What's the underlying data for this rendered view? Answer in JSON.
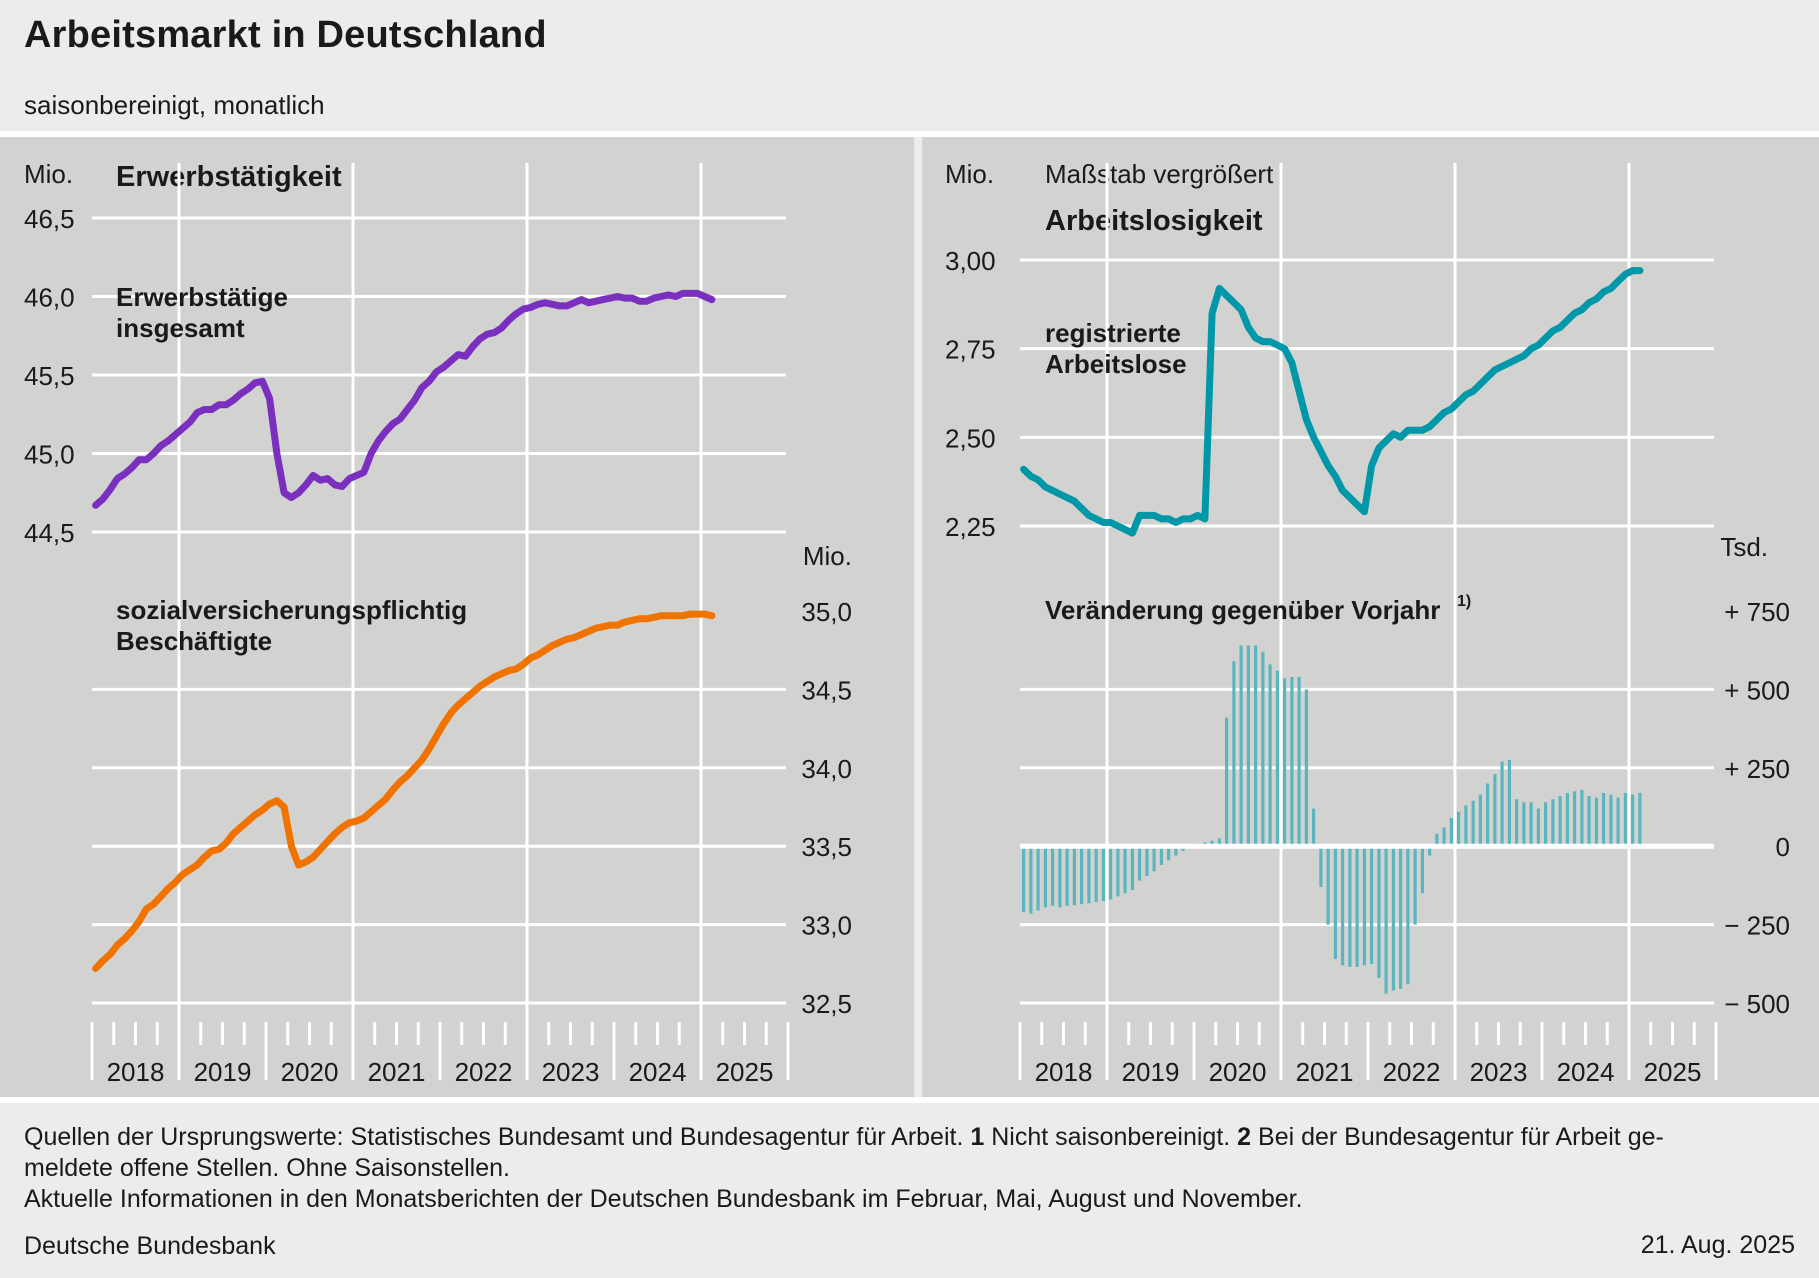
{
  "header": {
    "title": "Arbeitsmarkt in Deutschland",
    "subtitle": "saisonbereinigt, monatlich"
  },
  "colors": {
    "background": "#ececec",
    "panel": "#d2d2d1",
    "grid": "#ffffff",
    "employment": "#7b2fbf",
    "insured": "#f07300",
    "unemployment": "#0098a8",
    "change_bars": "#5ab6be"
  },
  "footer": {
    "line1_pre": "Quellen der Ursprungswerte: Statistisches Bundesamt und Bundesagentur für Arbeit. ",
    "fn1_num": "1",
    "fn1_text": " Nicht saisonbereinigt. ",
    "fn2_num": "2",
    "fn2_text": " Bei der Bundesagentur für Arbeit ge-",
    "line2": "meldete offene Stellen. Ohne Saisonstellen.",
    "line3": "Aktuelle Informationen in den Monatsberichten der Deutschen Bundesbank im Februar, Mai, August und November.",
    "source": "Deutsche Bundesbank",
    "date": "21. Aug. 2025"
  },
  "chart_data": [
    {
      "id": "erwerbstaetige",
      "type": "line",
      "panel_title": "Erwerbstätigkeit",
      "unit": "Mio.",
      "label_lines": [
        "Erwerbstätige",
        "insgesamt"
      ],
      "x_labels": [
        "2018",
        "2019",
        "2020",
        "2021",
        "2022",
        "2023",
        "2024",
        "2025"
      ],
      "x_start": "2018-01",
      "y_ticks": [
        44.5,
        45.0,
        45.5,
        46.0,
        46.5
      ],
      "y_tick_labels": [
        "44,5",
        "45,0",
        "45,5",
        "46,0",
        "46,5"
      ],
      "ylim": [
        44.5,
        46.5
      ],
      "values": [
        44.67,
        44.71,
        44.77,
        44.84,
        44.87,
        44.91,
        44.96,
        44.96,
        45.0,
        45.05,
        45.08,
        45.12,
        45.16,
        45.2,
        45.26,
        45.28,
        45.28,
        45.31,
        45.31,
        45.34,
        45.38,
        45.41,
        45.45,
        45.46,
        45.35,
        45.0,
        44.75,
        44.72,
        44.75,
        44.8,
        44.86,
        44.83,
        44.84,
        44.8,
        44.79,
        44.84,
        44.86,
        44.88,
        45.0,
        45.08,
        45.14,
        45.19,
        45.22,
        45.28,
        45.34,
        45.42,
        45.46,
        45.52,
        45.55,
        45.59,
        45.63,
        45.62,
        45.68,
        45.73,
        45.76,
        45.77,
        45.8,
        45.85,
        45.89,
        45.92,
        45.93,
        45.95,
        45.96,
        45.95,
        45.94,
        45.94,
        45.96,
        45.98,
        45.96,
        45.97,
        45.98,
        45.99,
        46.0,
        45.99,
        45.99,
        45.97,
        45.97,
        45.99,
        46.0,
        46.01,
        46.0,
        46.02,
        46.02,
        46.02,
        46.0,
        45.98
      ]
    },
    {
      "id": "sozialversicherungspflichtig",
      "type": "line",
      "unit": "Mio.",
      "label_lines": [
        "sozialversicherungspflichtig",
        "Beschäftigte"
      ],
      "y_ticks": [
        32.5,
        33.0,
        33.5,
        34.0,
        34.5,
        35.0
      ],
      "y_tick_labels": [
        "32,5",
        "33,0",
        "33,5",
        "34,0",
        "34,5",
        "35,0"
      ],
      "ylim": [
        32.5,
        35.0
      ],
      "values": [
        32.72,
        32.77,
        32.81,
        32.87,
        32.91,
        32.96,
        33.02,
        33.1,
        33.13,
        33.18,
        33.23,
        33.27,
        33.32,
        33.35,
        33.38,
        33.43,
        33.47,
        33.48,
        33.52,
        33.58,
        33.62,
        33.66,
        33.7,
        33.73,
        33.77,
        33.79,
        33.75,
        33.5,
        33.38,
        33.4,
        33.43,
        33.48,
        33.53,
        33.58,
        33.62,
        33.65,
        33.66,
        33.68,
        33.72,
        33.76,
        33.8,
        33.86,
        33.91,
        33.95,
        34.0,
        34.05,
        34.12,
        34.2,
        34.28,
        34.35,
        34.4,
        34.44,
        34.48,
        34.52,
        34.55,
        34.58,
        34.6,
        34.62,
        34.63,
        34.66,
        34.7,
        34.72,
        34.75,
        34.78,
        34.8,
        34.82,
        34.83,
        34.85,
        34.87,
        34.89,
        34.9,
        34.91,
        34.91,
        34.93,
        34.94,
        34.95,
        34.95,
        34.96,
        34.97,
        34.97,
        34.97,
        34.97,
        34.98,
        34.98,
        34.98,
        34.97
      ]
    },
    {
      "id": "arbeitslose",
      "type": "line",
      "panel_title": "Arbeitslosigkeit",
      "unit": "Mio.",
      "scale_note": "Maßstab vergrößert",
      "label_lines": [
        "registrierte",
        "Arbeitslose"
      ],
      "x_labels": [
        "2018",
        "2019",
        "2020",
        "2021",
        "2022",
        "2023",
        "2024",
        "2025"
      ],
      "y_ticks": [
        2.25,
        2.5,
        2.75,
        3.0
      ],
      "y_tick_labels": [
        "2,25",
        "2,50",
        "2,75",
        "3,00"
      ],
      "ylim": [
        2.25,
        3.0
      ],
      "values": [
        2.41,
        2.39,
        2.38,
        2.36,
        2.35,
        2.34,
        2.33,
        2.32,
        2.3,
        2.28,
        2.27,
        2.26,
        2.26,
        2.25,
        2.24,
        2.23,
        2.28,
        2.28,
        2.28,
        2.27,
        2.27,
        2.26,
        2.27,
        2.27,
        2.28,
        2.27,
        2.85,
        2.92,
        2.9,
        2.88,
        2.86,
        2.81,
        2.78,
        2.77,
        2.77,
        2.76,
        2.75,
        2.71,
        2.63,
        2.55,
        2.5,
        2.46,
        2.42,
        2.39,
        2.35,
        2.33,
        2.31,
        2.29,
        2.42,
        2.47,
        2.49,
        2.51,
        2.5,
        2.52,
        2.52,
        2.52,
        2.53,
        2.55,
        2.57,
        2.58,
        2.6,
        2.62,
        2.63,
        2.65,
        2.67,
        2.69,
        2.7,
        2.71,
        2.72,
        2.73,
        2.75,
        2.76,
        2.78,
        2.8,
        2.81,
        2.83,
        2.85,
        2.86,
        2.88,
        2.89,
        2.91,
        2.92,
        2.94,
        2.96,
        2.97,
        2.97
      ]
    },
    {
      "id": "veraenderung",
      "type": "bar",
      "title": "Veränderung gegenüber Vorjahr",
      "footnote": "1)",
      "unit": "Tsd.",
      "y_ticks": [
        -500,
        -250,
        0,
        250,
        500,
        750
      ],
      "y_tick_labels": [
        "− 500",
        "− 250",
        "0",
        "+ 250",
        "+ 500",
        "+ 750"
      ],
      "ylim": [
        -500,
        750
      ],
      "values": [
        -210,
        -215,
        -205,
        -195,
        -190,
        -195,
        -190,
        -188,
        -185,
        -182,
        -178,
        -175,
        -170,
        -160,
        -150,
        -140,
        -110,
        -95,
        -80,
        -60,
        -45,
        -30,
        -15,
        -5,
        8,
        12,
        18,
        25,
        410,
        590,
        640,
        640,
        640,
        620,
        580,
        560,
        535,
        540,
        540,
        500,
        120,
        -130,
        -250,
        -360,
        -380,
        -385,
        -385,
        -380,
        -375,
        -420,
        -470,
        -460,
        -455,
        -440,
        -250,
        -150,
        -30,
        40,
        60,
        90,
        110,
        130,
        145,
        165,
        200,
        230,
        270,
        275,
        150,
        140,
        140,
        120,
        140,
        150,
        160,
        170,
        175,
        180,
        160,
        155,
        170,
        165,
        155,
        170,
        165,
        170
      ]
    }
  ]
}
